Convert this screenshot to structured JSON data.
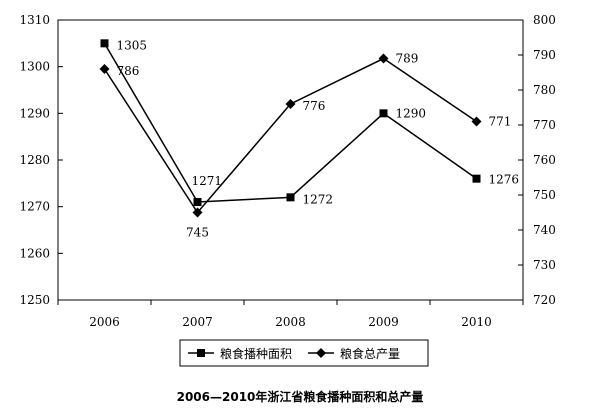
{
  "chart_data": {
    "type": "line",
    "caption": "2006—2010年浙江省粮食播种面积和总产量",
    "x": [
      "2006",
      "2007",
      "2008",
      "2009",
      "2010"
    ],
    "series": [
      {
        "name": "粮食播种面积",
        "axis": "left",
        "marker": "square",
        "values": [
          1305,
          1271,
          1272,
          1290,
          1276
        ],
        "labels": [
          "1305",
          "1271",
          "1272",
          "1290",
          "1276"
        ]
      },
      {
        "name": "粮食总产量",
        "axis": "right",
        "marker": "diamond",
        "values": [
          786,
          745,
          776,
          789,
          771
        ],
        "labels": [
          "786",
          "745",
          "776",
          "789",
          "771"
        ]
      }
    ],
    "y_left": {
      "min": 1250,
      "max": 1310,
      "step": 10,
      "ticks": [
        "1250",
        "1260",
        "1270",
        "1280",
        "1290",
        "1300",
        "1310"
      ]
    },
    "y_right": {
      "min": 720,
      "max": 800,
      "step": 10,
      "ticks": [
        "720",
        "730",
        "740",
        "750",
        "760",
        "770",
        "780",
        "790",
        "800"
      ]
    },
    "grid": false,
    "legend_position": "bottom-center"
  }
}
